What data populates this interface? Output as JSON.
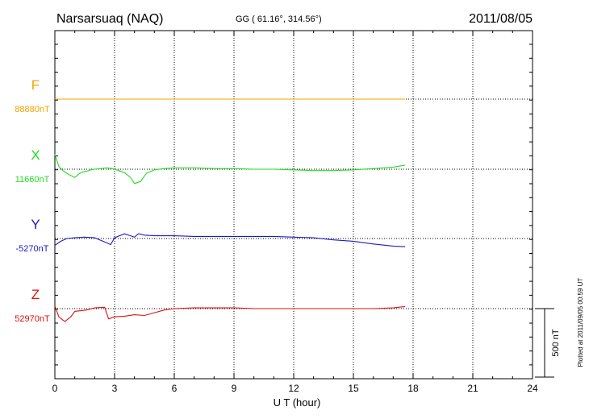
{
  "header": {
    "station": "Narsarsuaq (NAQ)",
    "coords": "GG ( 61.16°, 314.56°)",
    "date": "2011/08/05"
  },
  "side_note": "Plotted at 2011/09/05 00:59 UT",
  "scale_label": "500 nT",
  "chart_data": {
    "type": "line",
    "xlabel": "U T (hour)",
    "xlim": [
      0,
      24
    ],
    "xticks": [
      "0",
      "3",
      "6",
      "9",
      "12",
      "15",
      "18",
      "21",
      "24"
    ],
    "y_units": "nT",
    "scale_bar_nT": 500,
    "grid": true,
    "series": [
      {
        "name": "F",
        "baseline_label": "88880nT",
        "color": "#f5a300",
        "x": [
          0,
          17.6
        ],
        "y": [
          0,
          0
        ]
      },
      {
        "name": "X",
        "baseline_label": "11660nT",
        "color": "#22dd22",
        "x": [
          0,
          0.2,
          0.4,
          0.6,
          0.8,
          1.0,
          1.2,
          1.4,
          1.6,
          1.8,
          2.0,
          2.3,
          2.6,
          2.9,
          3.2,
          3.5,
          3.8,
          4.0,
          4.3,
          4.6,
          5.0,
          5.5,
          6.0,
          7,
          8,
          9,
          10,
          11,
          12,
          13,
          14,
          15,
          16,
          17,
          17.6
        ],
        "y": [
          110,
          20,
          -10,
          -30,
          -45,
          -60,
          -35,
          -20,
          -15,
          -5,
          0,
          5,
          10,
          5,
          -10,
          -25,
          -60,
          -105,
          -90,
          -30,
          -5,
          5,
          10,
          10,
          5,
          5,
          0,
          0,
          -5,
          -10,
          -10,
          -5,
          5,
          15,
          30
        ]
      },
      {
        "name": "Y",
        "baseline_label": "-5270nT",
        "color": "#1a1acc",
        "x": [
          0,
          0.3,
          0.6,
          1.0,
          1.5,
          2.0,
          2.5,
          2.8,
          3.0,
          3.5,
          3.8,
          4.0,
          4.2,
          4.5,
          5.0,
          6,
          7,
          8,
          9,
          10,
          11,
          12,
          13,
          14,
          15,
          16,
          17,
          17.6
        ],
        "y": [
          -50,
          -20,
          0,
          5,
          10,
          5,
          -25,
          -45,
          5,
          35,
          20,
          10,
          35,
          25,
          20,
          20,
          15,
          15,
          15,
          15,
          15,
          10,
          5,
          -10,
          -20,
          -40,
          -55,
          -60
        ]
      },
      {
        "name": "Z",
        "baseline_label": "52970nT",
        "color": "#dd1111",
        "x": [
          0,
          0.2,
          0.5,
          0.8,
          1.0,
          1.3,
          1.6,
          2.0,
          2.5,
          2.7,
          3.0,
          3.5,
          4.0,
          4.5,
          5.0,
          5.5,
          6.0,
          7,
          8,
          9,
          10,
          11,
          12,
          13,
          14,
          15,
          16,
          17,
          17.6
        ],
        "y": [
          20,
          -60,
          -95,
          -60,
          -20,
          -15,
          -10,
          5,
          10,
          -75,
          -60,
          -55,
          -45,
          -50,
          -30,
          -10,
          0,
          5,
          5,
          5,
          0,
          0,
          0,
          0,
          0,
          0,
          0,
          5,
          15
        ]
      }
    ]
  }
}
